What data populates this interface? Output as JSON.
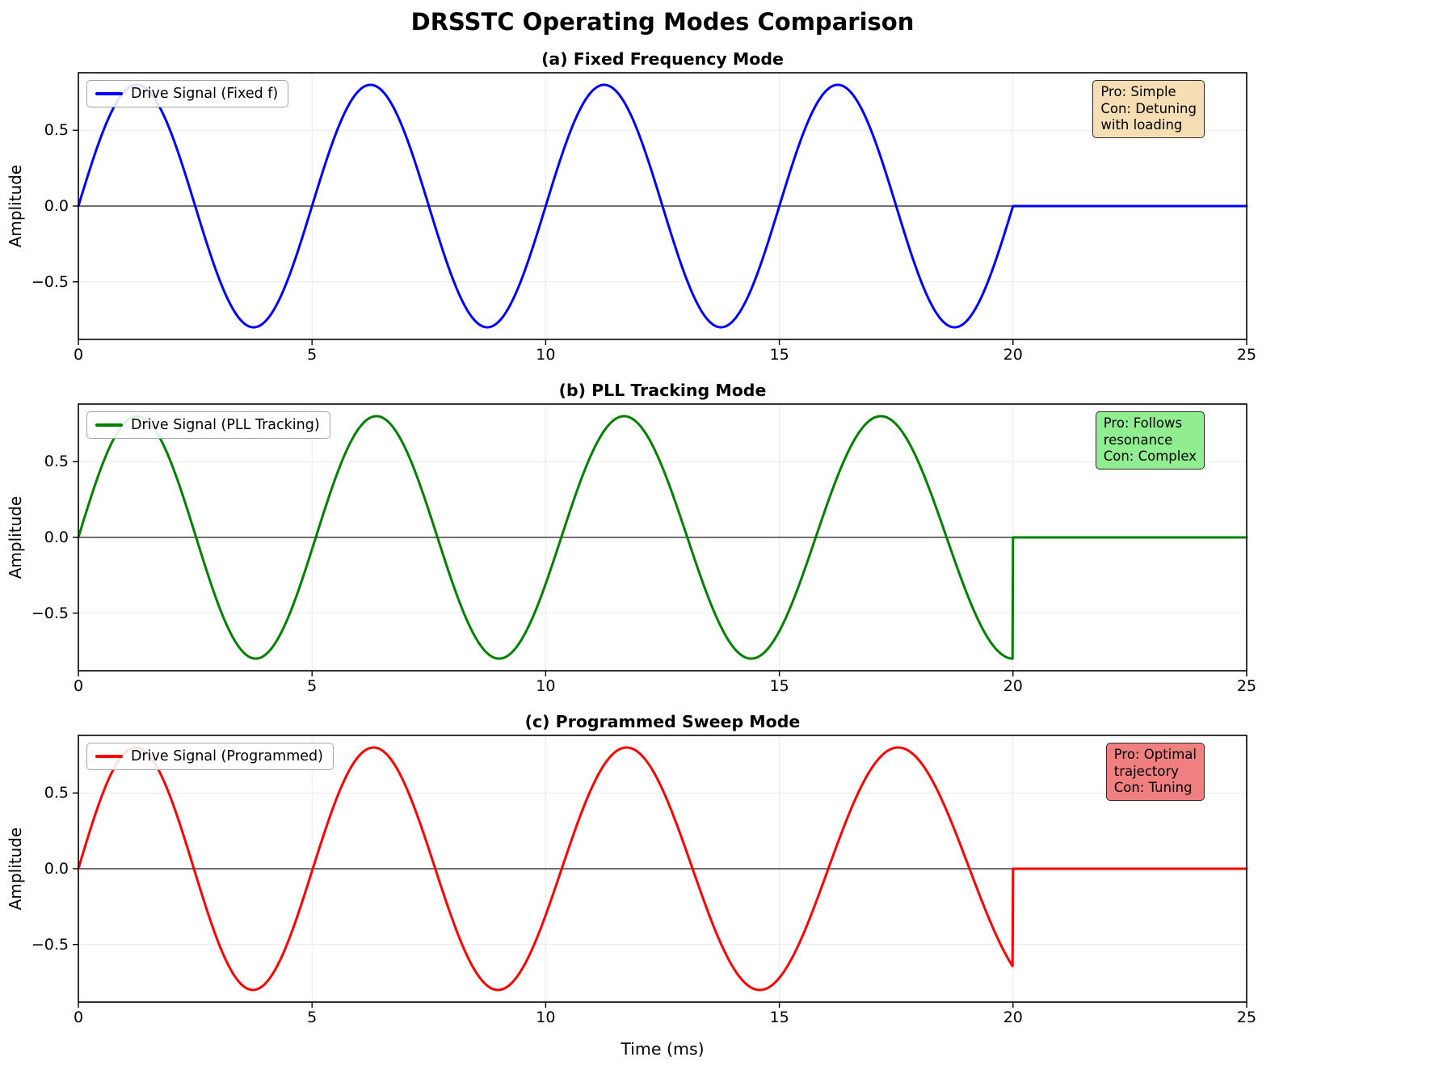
{
  "figure": {
    "title": "DRSSTC Operating Modes Comparison",
    "xlabel": "Time (ms)",
    "ylabel": "Amplitude"
  },
  "chart_data": [
    {
      "type": "line",
      "title": "(a) Fixed Frequency Mode",
      "legend_label": "Drive Signal (Fixed f)",
      "line_color": "#0000ff",
      "annotation": {
        "text": "Pro: Simple\nCon: Detuning\nwith loading",
        "bg_color": "#f5deb3"
      },
      "signal": {
        "amplitude": 0.8,
        "freq_start_cycles_per_ms": 0.2,
        "freq_end_cycles_per_ms": 0.2,
        "burst_end_ms": 20,
        "value_after_burst": 0,
        "value_at_burst_end": 0.0
      },
      "peaks_ms": [
        1.25,
        6.25,
        11.25,
        16.25
      ],
      "xlim": [
        0,
        25
      ],
      "ylim": [
        -0.88,
        0.88
      ],
      "x_ticks": [
        0,
        5,
        10,
        15,
        20,
        25
      ],
      "x_tick_labels": [
        "0",
        "5",
        "10",
        "15",
        "20",
        "25"
      ],
      "y_ticks": [
        -0.5,
        0,
        0.5
      ],
      "y_tick_labels": [
        "−0.5",
        "0.0",
        "0.5"
      ],
      "grid": true,
      "legend_position": "upper-left",
      "annotation_position": "upper-right"
    },
    {
      "type": "line",
      "title": "(b) PLL Tracking Mode",
      "legend_label": "Drive Signal (PLL Tracking)",
      "line_color": "#008000",
      "annotation": {
        "text": "Pro: Follows\nresonance\nCon: Complex",
        "bg_color": "#90ee90"
      },
      "signal": {
        "amplitude": 0.8,
        "freq_start_cycles_per_ms": 0.2,
        "freq_end_cycles_per_ms": 0.175,
        "burst_end_ms": 20,
        "value_after_burst": 0,
        "value_at_burst_end": -0.8
      },
      "peaks_ms": [
        1.3,
        6.4,
        11.7,
        17.2
      ],
      "xlim": [
        0,
        25
      ],
      "ylim": [
        -0.88,
        0.88
      ],
      "x_ticks": [
        0,
        5,
        10,
        15,
        20,
        25
      ],
      "x_tick_labels": [
        "0",
        "5",
        "10",
        "15",
        "20",
        "25"
      ],
      "y_ticks": [
        -0.5,
        0,
        0.5
      ],
      "y_tick_labels": [
        "−0.5",
        "0.0",
        "0.5"
      ],
      "grid": true,
      "legend_position": "upper-left",
      "annotation_position": "upper-right"
    },
    {
      "type": "line",
      "title": "(c) Programmed Sweep Mode",
      "legend_label": "Drive Signal (Programmed)",
      "line_color": "#ff0000",
      "annotation": {
        "text": "Pro: Optimal\ntrajectory\nCon: Tuning",
        "bg_color": "#f08080"
      },
      "signal": {
        "amplitude": 0.8,
        "freq_start_cycles_per_ms": 0.205,
        "freq_end_cycles_per_ms": 0.16,
        "burst_end_ms": 20,
        "value_after_burst": 0,
        "value_at_burst_end": -0.65
      },
      "peaks_ms": [
        1.25,
        6.3,
        11.7,
        17.5
      ],
      "xlim": [
        0,
        25
      ],
      "ylim": [
        -0.88,
        0.88
      ],
      "x_ticks": [
        0,
        5,
        10,
        15,
        20,
        25
      ],
      "x_tick_labels": [
        "0",
        "5",
        "10",
        "15",
        "20",
        "25"
      ],
      "y_ticks": [
        -0.5,
        0,
        0.5
      ],
      "y_tick_labels": [
        "−0.5",
        "0.0",
        "0.5"
      ],
      "grid": true,
      "legend_position": "upper-left",
      "annotation_position": "upper-right"
    }
  ]
}
